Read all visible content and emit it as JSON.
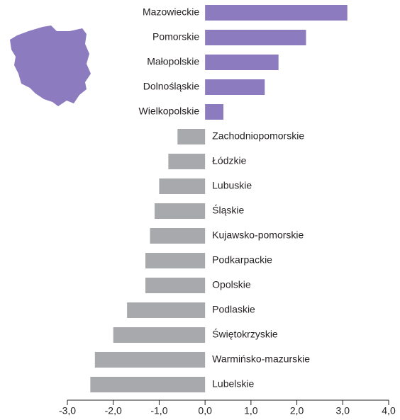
{
  "chart_data": {
    "type": "bar",
    "orientation": "horizontal",
    "categories": [
      "Mazowieckie",
      "Pomorskie",
      "Małopolskie",
      "Dolnośląskie",
      "Wielkopolskie",
      "Zachodniopomorskie",
      "Łódzkie",
      "Lubuskie",
      "Śląskie",
      "Kujawsko-pomorskie",
      "Podkarpackie",
      "Opolskie",
      "Podlaskie",
      "Świętokrzyskie",
      "Warmińsko-mazurskie",
      "Lubelskie"
    ],
    "values": [
      3.1,
      2.2,
      1.6,
      1.3,
      0.4,
      -0.6,
      -0.8,
      -1.0,
      -1.1,
      -1.2,
      -1.3,
      -1.3,
      -1.7,
      -2.0,
      -2.4,
      -2.5
    ],
    "colors": {
      "positive": "#8d7bc0",
      "negative": "#a7a9ac"
    },
    "xlim": [
      -3,
      4
    ],
    "xticks": [
      {
        "value": -3,
        "label": "-3,0"
      },
      {
        "value": -2,
        "label": "-2,0"
      },
      {
        "value": -1,
        "label": "-1,0"
      },
      {
        "value": 0,
        "label": "0,0"
      },
      {
        "value": 1,
        "label": "1,0"
      },
      {
        "value": 2,
        "label": "2,0"
      },
      {
        "value": 3,
        "label": "3,0"
      },
      {
        "value": 4,
        "label": "4,0"
      }
    ],
    "grid": false
  }
}
